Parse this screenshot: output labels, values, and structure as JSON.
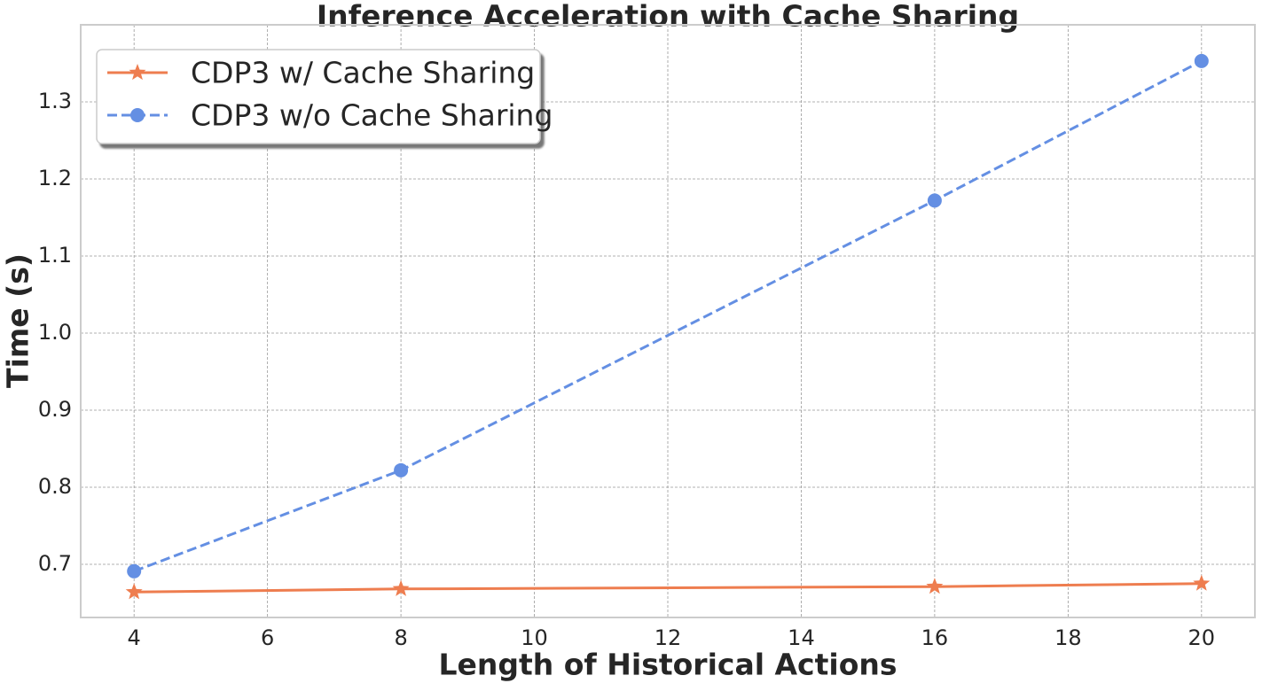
{
  "chart_data": {
    "type": "line",
    "title": "Inference Acceleration with Cache Sharing",
    "xlabel": "Length of Historical Actions",
    "ylabel": "Time (s)",
    "x": [
      4,
      8,
      16,
      20
    ],
    "series": [
      {
        "name": "CDP3 w/ Cache Sharing",
        "color": "#ee7d4f",
        "linestyle": "solid",
        "marker": "star",
        "values": [
          0.664,
          0.668,
          0.671,
          0.675
        ]
      },
      {
        "name": "CDP3 w/o Cache Sharing",
        "color": "#648fe3",
        "linestyle": "dashed",
        "marker": "circle",
        "values": [
          0.691,
          0.822,
          1.172,
          1.353
        ]
      }
    ],
    "xlim": [
      3.2,
      20.8
    ],
    "xticks": [
      4,
      6,
      8,
      10,
      12,
      14,
      16,
      18,
      20
    ],
    "ylim": [
      0.631,
      1.4
    ],
    "yticks": [
      0.7,
      0.8,
      0.9,
      {
        "value": 1,
        "label": "1.0"
      },
      1.1,
      1.2,
      1.3
    ],
    "grid": true,
    "legend": "upper left"
  }
}
